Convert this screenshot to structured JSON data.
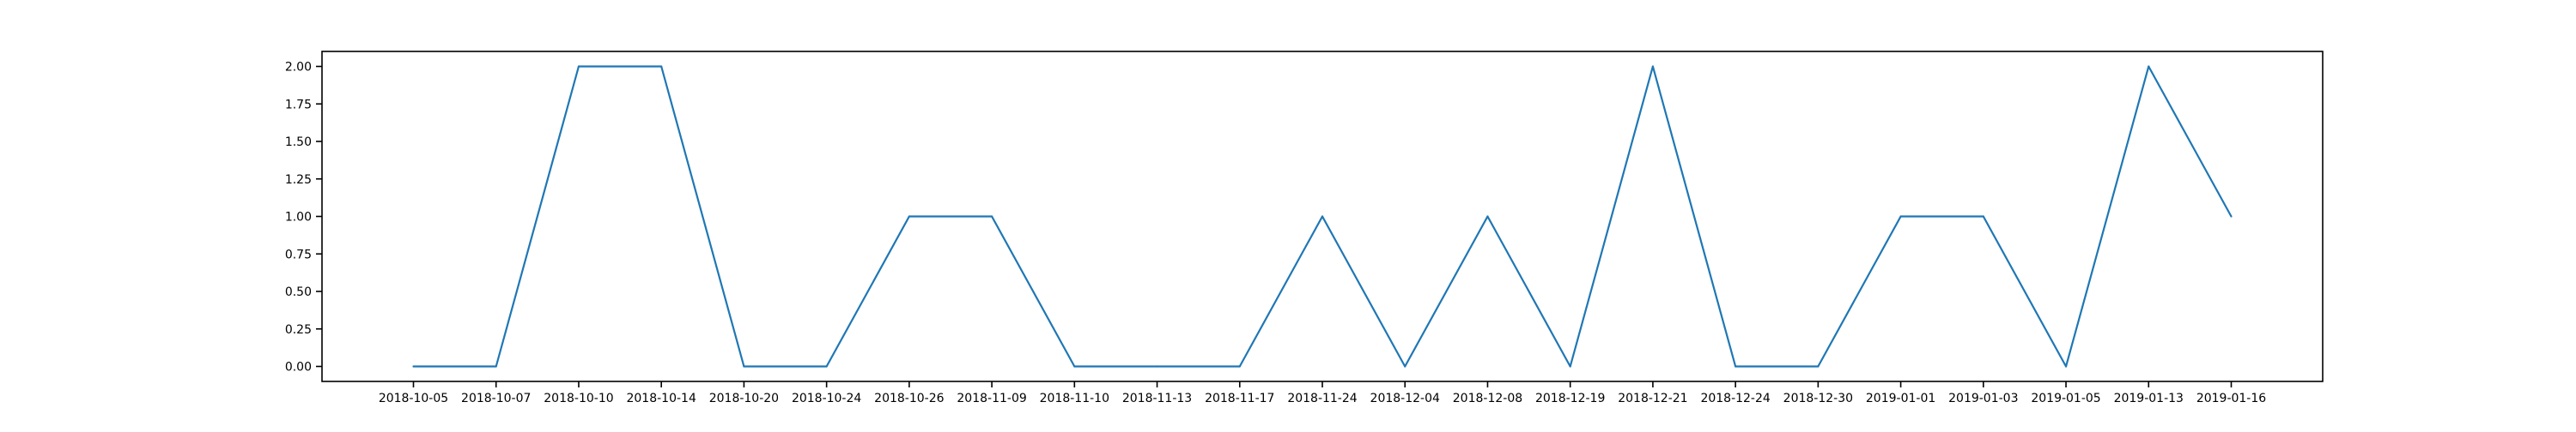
{
  "chart_data": {
    "type": "line",
    "title": "",
    "xlabel": "",
    "ylabel": "",
    "categories": [
      "2018-10-05",
      "2018-10-07",
      "2018-10-10",
      "2018-10-14",
      "2018-10-20",
      "2018-10-24",
      "2018-10-26",
      "2018-11-09",
      "2018-11-10",
      "2018-11-13",
      "2018-11-17",
      "2018-11-24",
      "2018-12-04",
      "2018-12-08",
      "2018-12-19",
      "2018-12-21",
      "2018-12-24",
      "2018-12-30",
      "2019-01-01",
      "2019-01-03",
      "2019-01-05",
      "2019-01-13",
      "2019-01-16"
    ],
    "series": [
      {
        "values": [
          0,
          0,
          2,
          2,
          0,
          0,
          1,
          1,
          0,
          0,
          0,
          1,
          0,
          1,
          0,
          2,
          0,
          0,
          1,
          1,
          0,
          2,
          1
        ],
        "color": "#1f77b4"
      }
    ],
    "ylim": [
      -0.1,
      2.1
    ],
    "yticks": [
      "0.00",
      "0.25",
      "0.50",
      "0.75",
      "1.00",
      "1.25",
      "1.50",
      "1.75",
      "2.00"
    ],
    "grid": false,
    "legend": "none"
  }
}
